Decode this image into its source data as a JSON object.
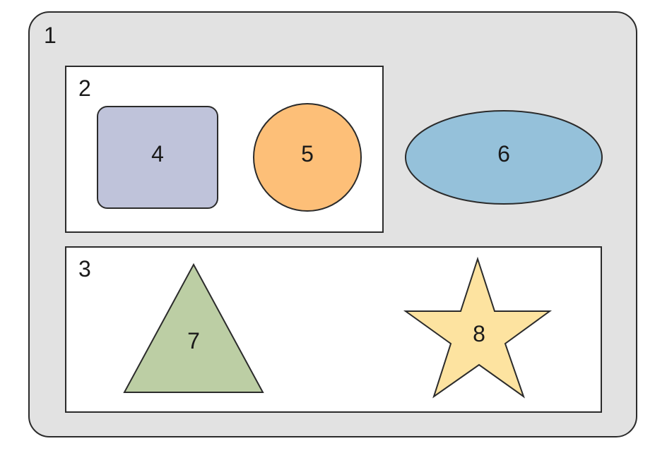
{
  "labels": {
    "container": "1",
    "group_top": "2",
    "group_bottom": "3",
    "square": "4",
    "circle": "5",
    "ellipse": "6",
    "triangle": "7",
    "star": "8"
  },
  "colors": {
    "container_fill": "#e2e2e2",
    "group_fill": "#ffffff",
    "square_fill": "#bfc3da",
    "circle_fill": "#fdbf78",
    "ellipse_fill": "#95c1da",
    "triangle_fill": "#bccea4",
    "star_fill": "#fde3a0",
    "stroke": "#2b2b2b"
  }
}
